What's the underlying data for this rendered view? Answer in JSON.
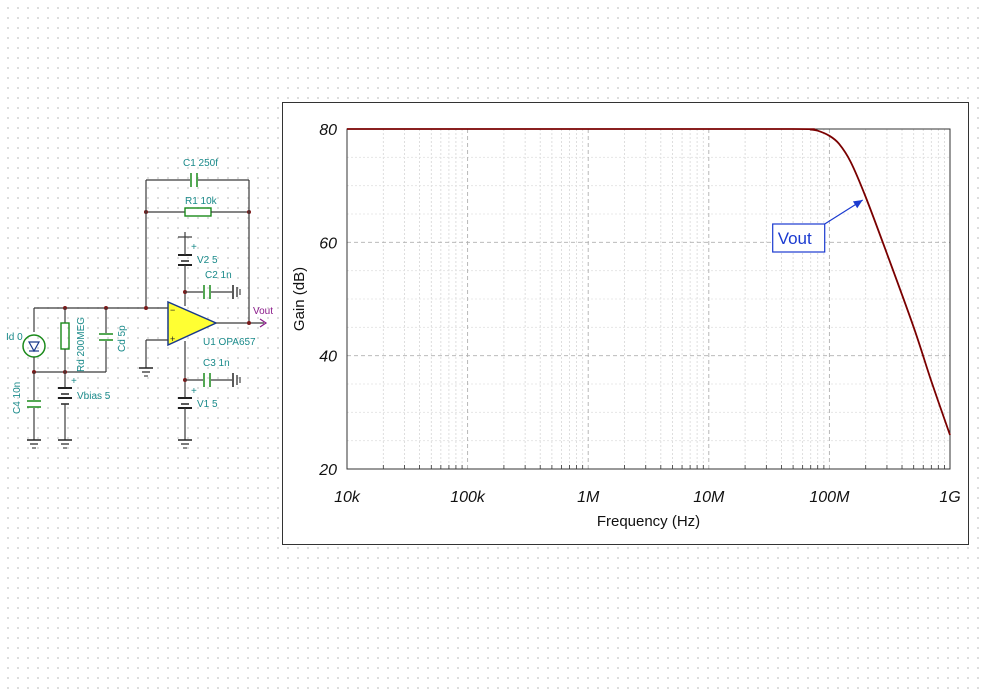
{
  "schematic": {
    "components": {
      "c1": "C1 250f",
      "r1": "R1 10k",
      "v2": "V2 5",
      "c2": "C2 1n",
      "c3": "C3 1n",
      "v1": "V1 5",
      "id": "Id 0",
      "rd": "Rd 200MEG",
      "cd": "Cd 5p",
      "c4": "C4 10n",
      "vbias": "Vbias 5",
      "u1": "U1 OPA657",
      "vout": "Vout"
    },
    "colors": {
      "label": "#1a8a8a",
      "opamp_fill": "#ffff33",
      "output_label": "#8a1a8a"
    }
  },
  "chart_data": {
    "type": "line",
    "xlabel": "Frequency (Hz)",
    "ylabel": "Gain (dB)",
    "x_scale": "log",
    "xlim": [
      10000,
      1000000000
    ],
    "ylim": [
      20,
      80
    ],
    "x_ticks": [
      10000,
      100000,
      1000000,
      10000000,
      100000000,
      1000000000
    ],
    "x_tick_labels": [
      "10k",
      "100k",
      "1M",
      "10M",
      "100M",
      "1G"
    ],
    "y_ticks": [
      20,
      40,
      60,
      80
    ],
    "y_tick_labels": [
      "20",
      "40",
      "60",
      "80"
    ],
    "grid": true,
    "series": [
      {
        "name": "Vout",
        "color": "#7a0000",
        "x": [
          10000,
          1000000,
          50000000,
          70000000,
          80000000,
          100000000,
          120000000,
          150000000,
          200000000,
          300000000,
          500000000,
          700000000,
          1000000000
        ],
        "y": [
          80,
          80,
          80,
          79.9,
          79.7,
          78.8,
          77.4,
          74.2,
          68.0,
          58.0,
          45.0,
          35.5,
          26.0
        ]
      }
    ],
    "annotations": [
      {
        "text": "Vout",
        "points_to": {
          "x": 200000000,
          "y": 68
        }
      }
    ]
  }
}
